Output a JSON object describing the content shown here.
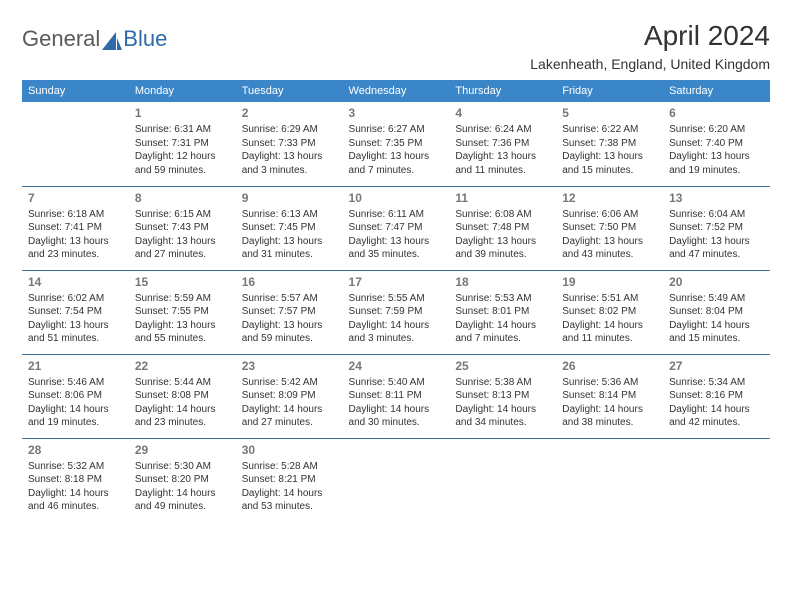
{
  "logo": {
    "text1": "General",
    "text2": "Blue",
    "color1": "#6a6a6a",
    "color2": "#2f6aa8",
    "iconColor": "#2f6aa8"
  },
  "header": {
    "title": "April 2024",
    "location": "Lakenheath, England, United Kingdom"
  },
  "style": {
    "headerBg": "#3a86c8",
    "headerFg": "#ffffff",
    "rowBorder": "#3a6a95",
    "background": "#ffffff",
    "textColor": "#333333",
    "dayNumColor": "#777777"
  },
  "dayNames": [
    "Sunday",
    "Monday",
    "Tuesday",
    "Wednesday",
    "Thursday",
    "Friday",
    "Saturday"
  ],
  "weeks": [
    [
      null,
      {
        "n": "1",
        "sr": "6:31 AM",
        "ss": "7:31 PM",
        "dl": "12 hours and 59 minutes."
      },
      {
        "n": "2",
        "sr": "6:29 AM",
        "ss": "7:33 PM",
        "dl": "13 hours and 3 minutes."
      },
      {
        "n": "3",
        "sr": "6:27 AM",
        "ss": "7:35 PM",
        "dl": "13 hours and 7 minutes."
      },
      {
        "n": "4",
        "sr": "6:24 AM",
        "ss": "7:36 PM",
        "dl": "13 hours and 11 minutes."
      },
      {
        "n": "5",
        "sr": "6:22 AM",
        "ss": "7:38 PM",
        "dl": "13 hours and 15 minutes."
      },
      {
        "n": "6",
        "sr": "6:20 AM",
        "ss": "7:40 PM",
        "dl": "13 hours and 19 minutes."
      }
    ],
    [
      {
        "n": "7",
        "sr": "6:18 AM",
        "ss": "7:41 PM",
        "dl": "13 hours and 23 minutes."
      },
      {
        "n": "8",
        "sr": "6:15 AM",
        "ss": "7:43 PM",
        "dl": "13 hours and 27 minutes."
      },
      {
        "n": "9",
        "sr": "6:13 AM",
        "ss": "7:45 PM",
        "dl": "13 hours and 31 minutes."
      },
      {
        "n": "10",
        "sr": "6:11 AM",
        "ss": "7:47 PM",
        "dl": "13 hours and 35 minutes."
      },
      {
        "n": "11",
        "sr": "6:08 AM",
        "ss": "7:48 PM",
        "dl": "13 hours and 39 minutes."
      },
      {
        "n": "12",
        "sr": "6:06 AM",
        "ss": "7:50 PM",
        "dl": "13 hours and 43 minutes."
      },
      {
        "n": "13",
        "sr": "6:04 AM",
        "ss": "7:52 PM",
        "dl": "13 hours and 47 minutes."
      }
    ],
    [
      {
        "n": "14",
        "sr": "6:02 AM",
        "ss": "7:54 PM",
        "dl": "13 hours and 51 minutes."
      },
      {
        "n": "15",
        "sr": "5:59 AM",
        "ss": "7:55 PM",
        "dl": "13 hours and 55 minutes."
      },
      {
        "n": "16",
        "sr": "5:57 AM",
        "ss": "7:57 PM",
        "dl": "13 hours and 59 minutes."
      },
      {
        "n": "17",
        "sr": "5:55 AM",
        "ss": "7:59 PM",
        "dl": "14 hours and 3 minutes."
      },
      {
        "n": "18",
        "sr": "5:53 AM",
        "ss": "8:01 PM",
        "dl": "14 hours and 7 minutes."
      },
      {
        "n": "19",
        "sr": "5:51 AM",
        "ss": "8:02 PM",
        "dl": "14 hours and 11 minutes."
      },
      {
        "n": "20",
        "sr": "5:49 AM",
        "ss": "8:04 PM",
        "dl": "14 hours and 15 minutes."
      }
    ],
    [
      {
        "n": "21",
        "sr": "5:46 AM",
        "ss": "8:06 PM",
        "dl": "14 hours and 19 minutes."
      },
      {
        "n": "22",
        "sr": "5:44 AM",
        "ss": "8:08 PM",
        "dl": "14 hours and 23 minutes."
      },
      {
        "n": "23",
        "sr": "5:42 AM",
        "ss": "8:09 PM",
        "dl": "14 hours and 27 minutes."
      },
      {
        "n": "24",
        "sr": "5:40 AM",
        "ss": "8:11 PM",
        "dl": "14 hours and 30 minutes."
      },
      {
        "n": "25",
        "sr": "5:38 AM",
        "ss": "8:13 PM",
        "dl": "14 hours and 34 minutes."
      },
      {
        "n": "26",
        "sr": "5:36 AM",
        "ss": "8:14 PM",
        "dl": "14 hours and 38 minutes."
      },
      {
        "n": "27",
        "sr": "5:34 AM",
        "ss": "8:16 PM",
        "dl": "14 hours and 42 minutes."
      }
    ],
    [
      {
        "n": "28",
        "sr": "5:32 AM",
        "ss": "8:18 PM",
        "dl": "14 hours and 46 minutes."
      },
      {
        "n": "29",
        "sr": "5:30 AM",
        "ss": "8:20 PM",
        "dl": "14 hours and 49 minutes."
      },
      {
        "n": "30",
        "sr": "5:28 AM",
        "ss": "8:21 PM",
        "dl": "14 hours and 53 minutes."
      },
      null,
      null,
      null,
      null
    ]
  ],
  "labels": {
    "sunrise": "Sunrise: ",
    "sunset": "Sunset: ",
    "daylight": "Daylight: "
  }
}
